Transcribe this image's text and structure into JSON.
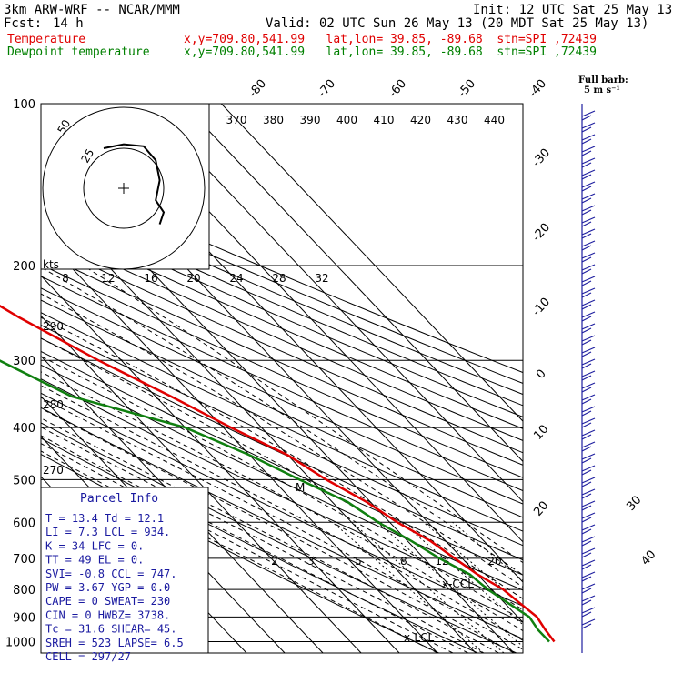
{
  "header": {
    "model": "3km ARW-WRF -- NCAR/MMM",
    "init": "Init: 12 UTC Sat 25 May 13",
    "fcst_label": "Fcst:",
    "fcst_value": "14 h",
    "valid": "Valid: 02 UTC Sun 26 May 13 (20 MDT Sat 25 May 13)",
    "temp_label": "Temperature",
    "temp_info": "x,y=709.80,541.99   lat,lon= 39.85, -89.68  stn=SPI ,72439",
    "dew_label": "Dewpoint temperature",
    "dew_info": "x,y=709.80,541.99   lat,lon= 39.85, -89.68  stn=SPI ,72439"
  },
  "colors": {
    "temperature": "#e00000",
    "dewpoint": "#108010",
    "parcel_text": "#1a1aa0",
    "barbs": "#2020a0"
  },
  "barb_label": {
    "line1": "Full barb:",
    "line2": "5 m s⁻¹"
  },
  "hodograph": {
    "kts_label": "kts",
    "ring_labels": [
      "8",
      "12",
      "16",
      "20",
      "24",
      "28",
      "32"
    ],
    "rings_small": [
      "25",
      "50"
    ]
  },
  "parcel_info": {
    "title": "Parcel Info",
    "rows": [
      "T  =   13.4  Td =  12.1",
      "LI =    7.3  LCL =  934.",
      "K  =     34  LFC =    0.",
      "TT =     49  EL  =    0.",
      "SVI=   -0.8  CCL =  747.",
      "PW =   3.67  YGP =   0.0",
      "CAPE =    0  SWEAT=  230",
      "CIN  =    0  HWBZ= 3738.",
      "Tc  =  31.6  SHEAR=  45.",
      "SREH =  523  LAPSE=  6.5",
      "CELL = 297/27"
    ]
  },
  "chart_data": {
    "type": "line",
    "title": "",
    "xlabel": "",
    "ylabel": "",
    "pressure_ticks": [
      "100",
      "200",
      "300",
      "400",
      "500",
      "600",
      "700",
      "800",
      "900",
      "1000"
    ],
    "theta_labels": [
      "370",
      "380",
      "390",
      "400",
      "410",
      "420",
      "430",
      "440"
    ],
    "mixing_ratio_labels": [
      "2",
      "3",
      "5",
      "8",
      "12",
      "20"
    ],
    "isotherm_labels": [
      "-80",
      "-70",
      "-60",
      "-50",
      "-40",
      "-30",
      "-20",
      "-10",
      "0",
      "10",
      "20",
      "30",
      "40"
    ],
    "left_side_labels": [
      "290",
      "280",
      "270"
    ],
    "annotations": [
      "x-CCL",
      "x-LCL",
      "M"
    ],
    "series": [
      {
        "name": "Temperature",
        "values": [
          [
            100,
            -54
          ],
          [
            150,
            -55
          ],
          [
            200,
            -56
          ],
          [
            250,
            -46
          ],
          [
            300,
            -36
          ],
          [
            350,
            -26
          ],
          [
            400,
            -18
          ],
          [
            450,
            -10
          ],
          [
            500,
            -6
          ],
          [
            550,
            -1
          ],
          [
            600,
            2
          ],
          [
            650,
            6
          ],
          [
            700,
            8
          ],
          [
            750,
            10
          ],
          [
            800,
            13
          ],
          [
            850,
            14
          ],
          [
            900,
            15
          ],
          [
            950,
            14
          ],
          [
            1000,
            13.4
          ]
        ]
      },
      {
        "name": "Dewpoint temperature",
        "values": [
          [
            100,
            -70
          ],
          [
            150,
            -75
          ],
          [
            200,
            -75
          ],
          [
            250,
            -68
          ],
          [
            300,
            -62
          ],
          [
            350,
            -52
          ],
          [
            400,
            -30
          ],
          [
            450,
            -20
          ],
          [
            500,
            -13
          ],
          [
            550,
            -6
          ],
          [
            600,
            -3
          ],
          [
            650,
            1
          ],
          [
            700,
            4
          ],
          [
            750,
            8
          ],
          [
            800,
            9
          ],
          [
            850,
            11
          ],
          [
            900,
            13
          ],
          [
            950,
            12.1
          ],
          [
            1000,
            12.1
          ]
        ]
      }
    ],
    "hodograph_points": [
      [
        -10,
        20
      ],
      [
        0,
        22
      ],
      [
        10,
        21
      ],
      [
        16,
        14
      ],
      [
        18,
        4
      ],
      [
        16,
        -6
      ],
      [
        20,
        -12
      ],
      [
        18,
        -18
      ]
    ]
  }
}
